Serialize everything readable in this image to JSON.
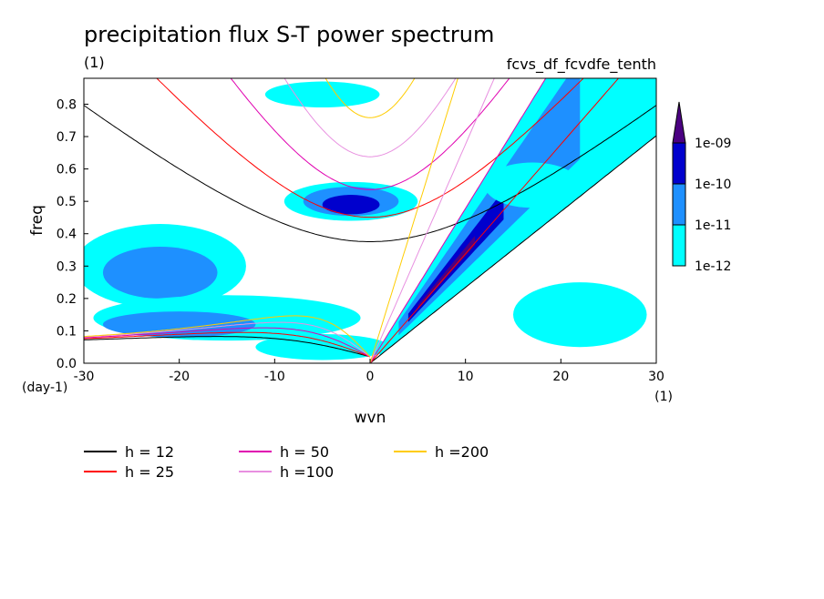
{
  "chart_data": {
    "type": "heatmap",
    "title": "precipitation flux S-T power spectrum",
    "units_left": "(1)",
    "run_label": "fcvs_df_fcvdfe_tenth",
    "xlabel": "wvn",
    "ylabel": "freq",
    "x_unit": "(1)",
    "y_unit": "(day-1)",
    "xlim": [
      -30,
      30
    ],
    "ylim": [
      0,
      0.88
    ],
    "xticks": [
      -30,
      -20,
      -10,
      0,
      10,
      20,
      30
    ],
    "yticks": [
      0.0,
      0.1,
      0.2,
      0.3,
      0.4,
      0.5,
      0.6,
      0.7,
      0.8
    ],
    "xtick_labels": [
      "-30",
      "-20",
      "-10",
      "0",
      "10",
      "20",
      "30"
    ],
    "ytick_labels": [
      "0.0",
      "0.1",
      "0.2",
      "0.3",
      "0.4",
      "0.5",
      "0.6",
      "0.7",
      "0.8"
    ],
    "colorbar": {
      "levels": [
        "1e-12",
        "1e-11",
        "1e-10",
        "1e-09"
      ],
      "colors": [
        "#00ffff",
        "#1e90ff",
        "#0000cd",
        "#4b0082"
      ]
    },
    "dispersion_curves": [
      {
        "name": "h = 12",
        "h": 12,
        "color": "#000000"
      },
      {
        "name": "h = 25",
        "h": 25,
        "color": "#ff0000"
      },
      {
        "name": "h = 50",
        "h": 50,
        "color": "#e000b0"
      },
      {
        "name": "h =100",
        "h": 100,
        "color": "#e890e0"
      },
      {
        "name": "h =200",
        "h": 200,
        "color": "#ffcc00"
      }
    ],
    "power_regions": [
      {
        "level": 0,
        "kind": "kelvin",
        "k0": 1,
        "k1": 30,
        "ha": 12,
        "hb": 50
      },
      {
        "level": 1,
        "kind": "kelvin",
        "k0": 3,
        "k1": 22,
        "ha": 18,
        "hb": 40
      },
      {
        "level": 2,
        "kind": "kelvin",
        "k0": 4,
        "k1": 14,
        "ha": 22,
        "hb": 32
      },
      {
        "level": 3,
        "kind": "kelvin",
        "k0": 5,
        "k1": 11,
        "ha": 24,
        "hb": 28
      },
      {
        "level": 0,
        "kind": "blob",
        "cx": -2,
        "cy": 0.5,
        "rx": 7,
        "ry": 0.06
      },
      {
        "level": 1,
        "kind": "blob",
        "cx": -2,
        "cy": 0.5,
        "rx": 5,
        "ry": 0.045
      },
      {
        "level": 2,
        "kind": "blob",
        "cx": -2,
        "cy": 0.49,
        "rx": 3,
        "ry": 0.03
      },
      {
        "level": 0,
        "kind": "blob",
        "cx": -22,
        "cy": 0.3,
        "rx": 9,
        "ry": 0.13
      },
      {
        "level": 1,
        "kind": "blob",
        "cx": -22,
        "cy": 0.28,
        "rx": 6,
        "ry": 0.08
      },
      {
        "level": 0,
        "kind": "blob",
        "cx": -15,
        "cy": 0.14,
        "rx": 14,
        "ry": 0.07
      },
      {
        "level": 1,
        "kind": "blob",
        "cx": -20,
        "cy": 0.12,
        "rx": 8,
        "ry": 0.04
      },
      {
        "level": 0,
        "kind": "blob",
        "cx": -5,
        "cy": 0.05,
        "rx": 7,
        "ry": 0.04
      },
      {
        "level": 0,
        "kind": "blob",
        "cx": 22,
        "cy": 0.15,
        "rx": 7,
        "ry": 0.1
      },
      {
        "level": 0,
        "kind": "blob",
        "cx": 17,
        "cy": 0.55,
        "rx": 5,
        "ry": 0.07
      },
      {
        "level": 0,
        "kind": "blob",
        "cx": -5,
        "cy": 0.83,
        "rx": 6,
        "ry": 0.04
      }
    ]
  }
}
